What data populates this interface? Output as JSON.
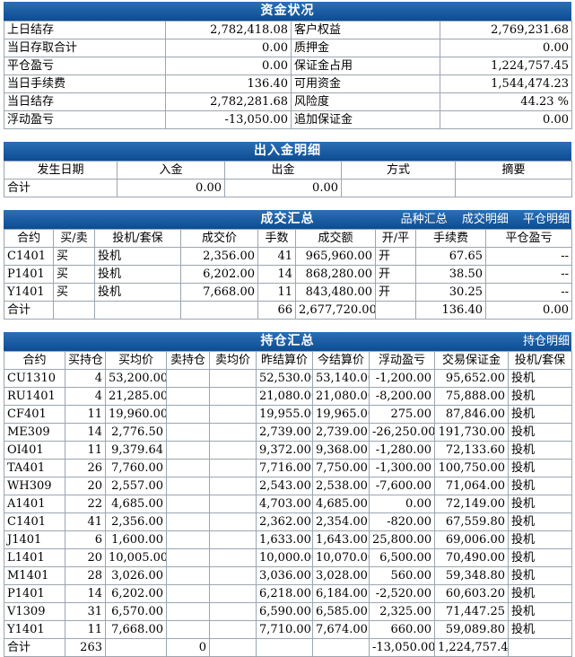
{
  "funds": {
    "title": "资金状况",
    "rows": [
      {
        "l1": "上日结存",
        "v1": "2,782,418.08",
        "l2": "客户权益",
        "v2": "2,769,231.68"
      },
      {
        "l1": "当日存取合计",
        "v1": "0.00",
        "l2": "质押金",
        "v2": "0.00"
      },
      {
        "l1": "平仓盈亏",
        "v1": "0.00",
        "l2": "保证金占用",
        "v2": "1,224,757.45"
      },
      {
        "l1": "当日手续费",
        "v1": "136.40",
        "l2": "可用资金",
        "v2": "1,544,474.23"
      },
      {
        "l1": "当日结存",
        "v1": "2,782,281.68",
        "l2": "风险度",
        "v2": "44.23 %"
      },
      {
        "l1": "浮动盈亏",
        "v1": "-13,050.00",
        "l2": "追加保证金",
        "v2": "0.00"
      }
    ]
  },
  "inout": {
    "title": "出入金明细",
    "headers": [
      "发生日期",
      "入金",
      "出金",
      "方式",
      "摘要"
    ],
    "total": {
      "label": "合计",
      "in": "0.00",
      "out": "0.00"
    }
  },
  "trades": {
    "title": "成交汇总",
    "links": [
      "品种汇总",
      "成交明细",
      "平仓明细"
    ],
    "headers": [
      "合约",
      "买/卖",
      "投机/套保",
      "成交价",
      "手数",
      "成交额",
      "开/平",
      "手续费",
      "平仓盈亏"
    ],
    "rows": [
      [
        "C1401",
        "买",
        "投机",
        "2,356.00",
        "41",
        "965,960.00",
        "开",
        "67.65",
        "--"
      ],
      [
        "P1401",
        "买",
        "投机",
        "6,202.00",
        "14",
        "868,280.00",
        "开",
        "38.50",
        "--"
      ],
      [
        "Y1401",
        "买",
        "投机",
        "7,668.00",
        "11",
        "843,480.00",
        "开",
        "30.25",
        "--"
      ]
    ],
    "total": {
      "label": "合计",
      "lots": "66",
      "amount": "2,677,720.00",
      "fee": "136.40",
      "pnl": "0.00"
    }
  },
  "positions": {
    "title": "持仓汇总",
    "links": [
      "持仓明细"
    ],
    "headers": [
      "合约",
      "买持仓",
      "买均价",
      "卖持仓",
      "卖均价",
      "昨结算价",
      "今结算价",
      "浮动盈亏",
      "交易保证金",
      "投机/套保"
    ],
    "rows": [
      [
        "CU1310",
        "4",
        "53,200.00",
        "",
        "",
        "52,530.00",
        "53,140.00",
        "-1,200.00",
        "95,652.00",
        "投机"
      ],
      [
        "RU1401",
        "4",
        "21,285.00",
        "",
        "",
        "21,080.00",
        "21,080.00",
        "-8,200.00",
        "75,888.00",
        "投机"
      ],
      [
        "CF401",
        "11",
        "19,960.00",
        "",
        "",
        "19,955.00",
        "19,965.00",
        "275.00",
        "87,846.00",
        "投机"
      ],
      [
        "ME309",
        "14",
        "2,776.50",
        "",
        "",
        "2,739.00",
        "2,739.00",
        "-26,250.00",
        "191,730.00",
        "投机"
      ],
      [
        "OI401",
        "11",
        "9,379.64",
        "",
        "",
        "9,372.00",
        "9,368.00",
        "-1,280.00",
        "72,133.60",
        "投机"
      ],
      [
        "TA401",
        "26",
        "7,760.00",
        "",
        "",
        "7,716.00",
        "7,750.00",
        "-1,300.00",
        "100,750.00",
        "投机"
      ],
      [
        "WH309",
        "20",
        "2,557.00",
        "",
        "",
        "2,543.00",
        "2,538.00",
        "-7,600.00",
        "71,064.00",
        "投机"
      ],
      [
        "A1401",
        "22",
        "4,685.00",
        "",
        "",
        "4,703.00",
        "4,685.00",
        "0.00",
        "72,149.00",
        "投机"
      ],
      [
        "C1401",
        "41",
        "2,356.00",
        "",
        "",
        "2,362.00",
        "2,354.00",
        "-820.00",
        "67,559.80",
        "投机"
      ],
      [
        "J1401",
        "6",
        "1,600.00",
        "",
        "",
        "1,633.00",
        "1,643.00",
        "25,800.00",
        "69,006.00",
        "投机"
      ],
      [
        "L1401",
        "20",
        "10,005.00",
        "",
        "",
        "10,000.00",
        "10,070.00",
        "6,500.00",
        "70,490.00",
        "投机"
      ],
      [
        "M1401",
        "28",
        "3,026.00",
        "",
        "",
        "3,036.00",
        "3,028.00",
        "560.00",
        "59,348.80",
        "投机"
      ],
      [
        "P1401",
        "14",
        "6,202.00",
        "",
        "",
        "6,218.00",
        "6,184.00",
        "-2,520.00",
        "60,603.20",
        "投机"
      ],
      [
        "V1309",
        "31",
        "6,570.00",
        "",
        "",
        "6,590.00",
        "6,585.00",
        "2,325.00",
        "71,447.25",
        "投机"
      ],
      [
        "Y1401",
        "11",
        "7,668.00",
        "",
        "",
        "7,710.00",
        "7,674.00",
        "660.00",
        "59,089.80",
        "投机"
      ]
    ],
    "total": {
      "label": "合计",
      "buy": "263",
      "sell": "0",
      "pnl": "-13,050.00",
      "margin": "1,224,757.45"
    }
  }
}
